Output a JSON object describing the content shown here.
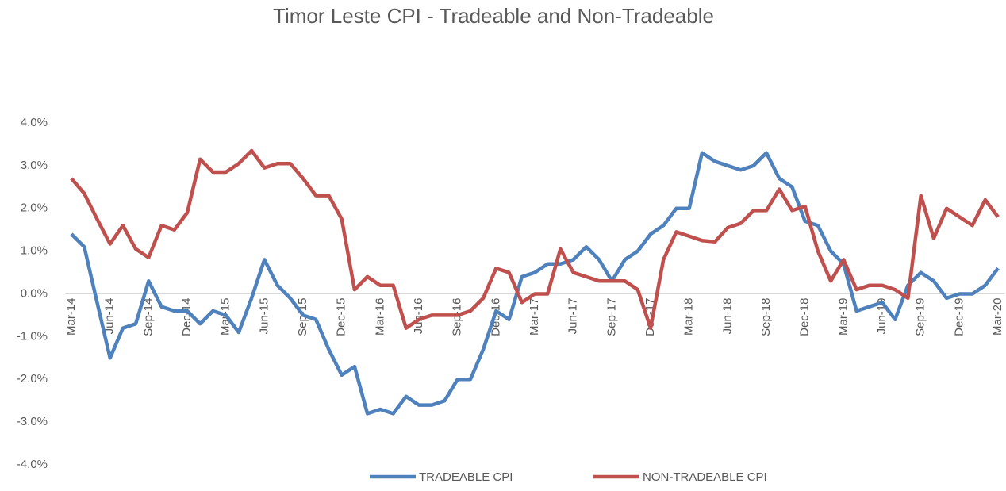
{
  "chart_data": {
    "type": "line",
    "title": "Timor Leste CPI - Tradeable and Non-Tradeable",
    "categories": [
      "Mar-14",
      null,
      null,
      "Jun-14",
      null,
      null,
      "Sep-14",
      null,
      null,
      "Dec-14",
      null,
      null,
      "Mar-15",
      null,
      null,
      "Jun-15",
      null,
      null,
      "Sep-15",
      null,
      null,
      "Dec-15",
      null,
      null,
      "Mar-16",
      null,
      null,
      "Jun-16",
      null,
      null,
      "Sep-16",
      null,
      null,
      "Dec-16",
      null,
      null,
      "Mar-17",
      null,
      null,
      "Jun-17",
      null,
      null,
      "Sep-17",
      null,
      null,
      "Dec-17",
      null,
      null,
      "Mar-18",
      null,
      null,
      "Jun-18",
      null,
      null,
      "Sep-18",
      null,
      null,
      "Dec-18",
      null,
      null,
      "Mar-19",
      null,
      null,
      "Jun-19",
      null,
      null,
      "Sep-19",
      null,
      null,
      "Dec-19",
      null,
      null,
      "Mar-20"
    ],
    "series": [
      {
        "name": "TRADEABLE CPI",
        "color": "#4f81bd",
        "values": [
          1.4,
          1.1,
          -0.2,
          -1.5,
          -0.8,
          -0.7,
          0.3,
          -0.3,
          -0.4,
          -0.4,
          -0.7,
          -0.4,
          -0.5,
          -0.9,
          -0.1,
          0.8,
          0.2,
          -0.1,
          -0.5,
          -0.6,
          -1.3,
          -1.9,
          -1.7,
          -2.8,
          -2.7,
          -2.8,
          -2.4,
          -2.6,
          -2.6,
          -2.5,
          -2.0,
          -2.0,
          -1.3,
          -0.4,
          -0.6,
          0.4,
          0.5,
          0.7,
          0.7,
          0.8,
          1.1,
          0.8,
          0.3,
          0.8,
          1.0,
          1.4,
          1.6,
          2.0,
          2.0,
          3.3,
          3.1,
          3.0,
          2.9,
          3.0,
          3.3,
          2.7,
          2.5,
          1.7,
          1.6,
          1.0,
          0.7,
          -0.4,
          -0.3,
          -0.2,
          -0.6,
          0.2,
          0.5,
          0.3,
          -0.1,
          0.0,
          0.0,
          0.2,
          0.6
        ]
      },
      {
        "name": "NON-TRADEABLE CPI",
        "color": "#c0504d",
        "values": [
          2.7,
          2.35,
          1.75,
          1.17,
          1.6,
          1.05,
          0.85,
          1.6,
          1.5,
          1.9,
          3.15,
          2.85,
          2.85,
          3.05,
          3.35,
          2.95,
          3.05,
          3.05,
          2.7,
          2.3,
          2.3,
          1.75,
          0.1,
          0.4,
          0.2,
          0.2,
          -0.8,
          -0.6,
          -0.5,
          -0.5,
          -0.5,
          -0.4,
          -0.1,
          0.6,
          0.5,
          -0.2,
          0.0,
          0.0,
          1.05,
          0.5,
          0.4,
          0.3,
          0.3,
          0.3,
          0.1,
          -0.8,
          0.8,
          1.45,
          1.35,
          1.25,
          1.22,
          1.55,
          1.65,
          1.95,
          1.95,
          2.45,
          1.95,
          2.05,
          1.0,
          0.3,
          0.8,
          0.1,
          0.2,
          0.2,
          0.1,
          -0.1,
          2.3,
          1.3,
          2.0,
          1.8,
          1.6,
          2.2,
          1.8
        ]
      }
    ],
    "ylim": [
      -4,
      4
    ],
    "yticks": [
      {
        "value": -4,
        "label": "-4.0%"
      },
      {
        "value": -3,
        "label": "-3.0%"
      },
      {
        "value": -2,
        "label": "-2.0%"
      },
      {
        "value": -1,
        "label": "-1.0%"
      },
      {
        "value": 0,
        "label": "0.0%"
      },
      {
        "value": 1,
        "label": "1.0%"
      },
      {
        "value": 2,
        "label": "2.0%"
      },
      {
        "value": 3,
        "label": "3.0%"
      },
      {
        "value": 4,
        "label": "4.0%"
      }
    ],
    "legend": "bottom"
  }
}
